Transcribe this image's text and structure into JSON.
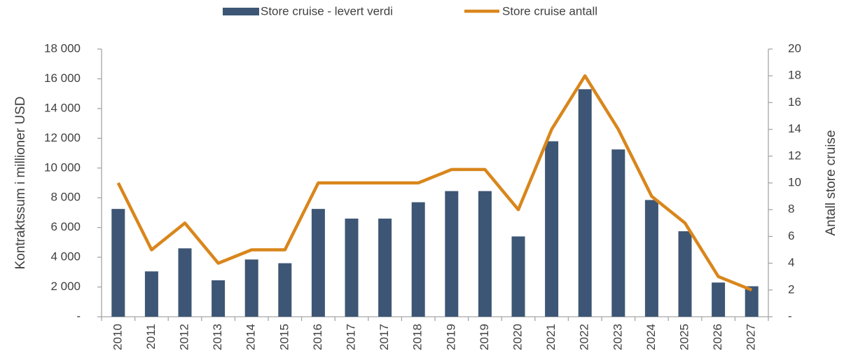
{
  "chart_data": {
    "type": "bar_line",
    "categories": [
      "2010",
      "2011",
      "2012",
      "2013",
      "2014",
      "2015",
      "2016",
      "2017",
      "2017",
      "2018",
      "2019",
      "2019",
      "2020",
      "2021",
      "2022",
      "2023",
      "2024",
      "2025",
      "2026",
      "2027"
    ],
    "series": [
      {
        "name": "Store cruise - levert verdi",
        "color": "#3d5675",
        "type": "bar",
        "axis": "y",
        "values": [
          7250,
          3050,
          4600,
          2450,
          3850,
          3600,
          7250,
          6600,
          6600,
          7700,
          8450,
          8450,
          5400,
          11800,
          15300,
          11250,
          7850,
          5750,
          2300,
          2050
        ]
      },
      {
        "name": "Store cruise antall",
        "color": "#d9861c",
        "type": "line",
        "axis": "y2",
        "values": [
          10,
          5,
          7,
          4,
          5,
          5,
          10,
          10,
          10,
          10,
          11,
          11,
          8,
          14,
          18,
          14,
          9,
          7,
          3,
          2
        ]
      }
    ],
    "y_label": "Kontraktssum i millioner USD",
    "y2_label": "Antall store cruise",
    "ylim": [
      0,
      18000
    ],
    "yticks": [
      {
        "value": 0,
        "label": "-"
      },
      {
        "value": 2000,
        "label": "2 000"
      },
      {
        "value": 4000,
        "label": "4 000"
      },
      {
        "value": 6000,
        "label": "6 000"
      },
      {
        "value": 8000,
        "label": "8 000"
      },
      {
        "value": 10000,
        "label": "10 000"
      },
      {
        "value": 12000,
        "label": "12 000"
      },
      {
        "value": 14000,
        "label": "14 000"
      },
      {
        "value": 16000,
        "label": "16 000"
      },
      {
        "value": 18000,
        "label": "18 000"
      }
    ],
    "y2lim": [
      0,
      20
    ],
    "y2ticks": [
      {
        "value": 0,
        "label": "-"
      },
      2,
      4,
      6,
      8,
      10,
      12,
      14,
      16,
      18,
      20
    ],
    "grid": false,
    "legend": "top"
  }
}
